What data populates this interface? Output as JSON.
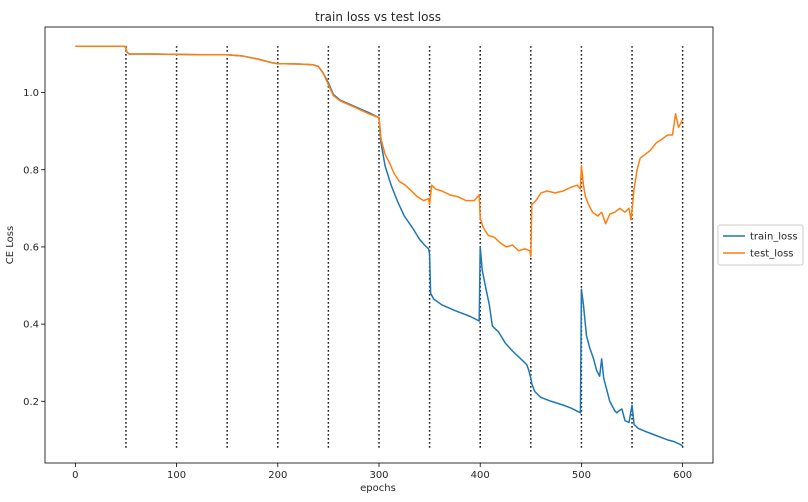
{
  "chart_data": {
    "type": "line",
    "title": "train loss vs test loss",
    "xlabel": "epochs",
    "ylabel": "CE Loss",
    "xlim": [
      -30,
      630
    ],
    "ylim": [
      0.04,
      1.17
    ],
    "xticks": [
      0,
      100,
      200,
      300,
      400,
      500,
      600
    ],
    "yticks": [
      0.2,
      0.4,
      0.6,
      0.8,
      1.0
    ],
    "xtick_labels": [
      "0",
      "100",
      "200",
      "300",
      "400",
      "500",
      "600"
    ],
    "ytick_labels": [
      "0.2",
      "0.4",
      "0.6",
      "0.8",
      "1.0"
    ],
    "grid": false,
    "legend_position": "right, outside plot area",
    "vlines": {
      "x": [
        50,
        100,
        150,
        200,
        250,
        300,
        350,
        400,
        450,
        500,
        550,
        600
      ],
      "ymin": 0.08,
      "ymax": 1.12,
      "style": "dotted",
      "color": "#000000"
    },
    "series": [
      {
        "name": "train_loss",
        "color": "#1f77b4",
        "points": [
          [
            0,
            1.12
          ],
          [
            25,
            1.12
          ],
          [
            49,
            1.12
          ],
          [
            51,
            1.105
          ],
          [
            53,
            1.1
          ],
          [
            75,
            1.1
          ],
          [
            100,
            1.099
          ],
          [
            125,
            1.098
          ],
          [
            150,
            1.098
          ],
          [
            165,
            1.095
          ],
          [
            180,
            1.087
          ],
          [
            195,
            1.077
          ],
          [
            200,
            1.075
          ],
          [
            220,
            1.074
          ],
          [
            235,
            1.072
          ],
          [
            240,
            1.068
          ],
          [
            245,
            1.05
          ],
          [
            250,
            1.025
          ],
          [
            255,
            0.995
          ],
          [
            262,
            0.98
          ],
          [
            275,
            0.965
          ],
          [
            290,
            0.948
          ],
          [
            300,
            0.935
          ],
          [
            302,
            0.87
          ],
          [
            306,
            0.81
          ],
          [
            312,
            0.76
          ],
          [
            318,
            0.72
          ],
          [
            325,
            0.68
          ],
          [
            333,
            0.65
          ],
          [
            340,
            0.62
          ],
          [
            345,
            0.605
          ],
          [
            349,
            0.595
          ],
          [
            350,
            0.58
          ],
          [
            351,
            0.48
          ],
          [
            354,
            0.465
          ],
          [
            362,
            0.45
          ],
          [
            375,
            0.435
          ],
          [
            390,
            0.42
          ],
          [
            399,
            0.408
          ],
          [
            400,
            0.6
          ],
          [
            402,
            0.54
          ],
          [
            405,
            0.5
          ],
          [
            409,
            0.45
          ],
          [
            412,
            0.395
          ],
          [
            418,
            0.38
          ],
          [
            425,
            0.35
          ],
          [
            432,
            0.33
          ],
          [
            440,
            0.31
          ],
          [
            446,
            0.295
          ],
          [
            448,
            0.28
          ],
          [
            449,
            0.27
          ],
          [
            450,
            0.26
          ],
          [
            451,
            0.245
          ],
          [
            454,
            0.225
          ],
          [
            460,
            0.21
          ],
          [
            470,
            0.2
          ],
          [
            482,
            0.19
          ],
          [
            490,
            0.182
          ],
          [
            499,
            0.17
          ],
          [
            500,
            0.49
          ],
          [
            502,
            0.45
          ],
          [
            505,
            0.37
          ],
          [
            508,
            0.34
          ],
          [
            512,
            0.31
          ],
          [
            515,
            0.28
          ],
          [
            518,
            0.265
          ],
          [
            520,
            0.31
          ],
          [
            522,
            0.26
          ],
          [
            525,
            0.23
          ],
          [
            528,
            0.2
          ],
          [
            533,
            0.175
          ],
          [
            535,
            0.17
          ],
          [
            537,
            0.175
          ],
          [
            540,
            0.18
          ],
          [
            543,
            0.15
          ],
          [
            547,
            0.145
          ],
          [
            550,
            0.19
          ],
          [
            552,
            0.14
          ],
          [
            556,
            0.13
          ],
          [
            565,
            0.12
          ],
          [
            575,
            0.11
          ],
          [
            585,
            0.1
          ],
          [
            592,
            0.095
          ],
          [
            596,
            0.09
          ],
          [
            600,
            0.085
          ]
        ]
      },
      {
        "name": "test_loss",
        "color": "#ff7f0e",
        "points": [
          [
            0,
            1.12
          ],
          [
            25,
            1.12
          ],
          [
            49,
            1.12
          ],
          [
            51,
            1.105
          ],
          [
            53,
            1.1
          ],
          [
            75,
            1.1
          ],
          [
            100,
            1.099
          ],
          [
            125,
            1.098
          ],
          [
            150,
            1.098
          ],
          [
            165,
            1.095
          ],
          [
            180,
            1.087
          ],
          [
            195,
            1.077
          ],
          [
            200,
            1.075
          ],
          [
            220,
            1.074
          ],
          [
            235,
            1.072
          ],
          [
            240,
            1.068
          ],
          [
            245,
            1.05
          ],
          [
            250,
            1.02
          ],
          [
            255,
            0.992
          ],
          [
            262,
            0.978
          ],
          [
            275,
            0.963
          ],
          [
            290,
            0.945
          ],
          [
            300,
            0.935
          ],
          [
            302,
            0.88
          ],
          [
            306,
            0.84
          ],
          [
            310,
            0.82
          ],
          [
            315,
            0.79
          ],
          [
            320,
            0.77
          ],
          [
            326,
            0.76
          ],
          [
            332,
            0.745
          ],
          [
            338,
            0.73
          ],
          [
            344,
            0.72
          ],
          [
            349,
            0.725
          ],
          [
            350,
            0.71
          ],
          [
            352,
            0.76
          ],
          [
            356,
            0.75
          ],
          [
            362,
            0.745
          ],
          [
            370,
            0.735
          ],
          [
            378,
            0.73
          ],
          [
            386,
            0.72
          ],
          [
            394,
            0.72
          ],
          [
            399,
            0.735
          ],
          [
            400,
            0.675
          ],
          [
            403,
            0.65
          ],
          [
            408,
            0.63
          ],
          [
            414,
            0.625
          ],
          [
            420,
            0.61
          ],
          [
            426,
            0.6
          ],
          [
            432,
            0.605
          ],
          [
            438,
            0.59
          ],
          [
            444,
            0.595
          ],
          [
            449,
            0.59
          ],
          [
            450,
            0.575
          ],
          [
            451,
            0.71
          ],
          [
            455,
            0.72
          ],
          [
            460,
            0.74
          ],
          [
            466,
            0.745
          ],
          [
            474,
            0.74
          ],
          [
            482,
            0.745
          ],
          [
            490,
            0.755
          ],
          [
            496,
            0.76
          ],
          [
            499,
            0.75
          ],
          [
            500,
            0.81
          ],
          [
            502,
            0.76
          ],
          [
            504,
            0.73
          ],
          [
            507,
            0.71
          ],
          [
            511,
            0.69
          ],
          [
            516,
            0.68
          ],
          [
            520,
            0.69
          ],
          [
            524,
            0.66
          ],
          [
            528,
            0.685
          ],
          [
            533,
            0.69
          ],
          [
            538,
            0.7
          ],
          [
            543,
            0.69
          ],
          [
            547,
            0.7
          ],
          [
            549,
            0.67
          ],
          [
            550,
            0.695
          ],
          [
            552,
            0.75
          ],
          [
            555,
            0.8
          ],
          [
            558,
            0.83
          ],
          [
            563,
            0.84
          ],
          [
            568,
            0.85
          ],
          [
            574,
            0.87
          ],
          [
            580,
            0.88
          ],
          [
            585,
            0.89
          ],
          [
            590,
            0.89
          ],
          [
            593,
            0.945
          ],
          [
            596,
            0.91
          ],
          [
            600,
            0.93
          ]
        ]
      }
    ]
  }
}
